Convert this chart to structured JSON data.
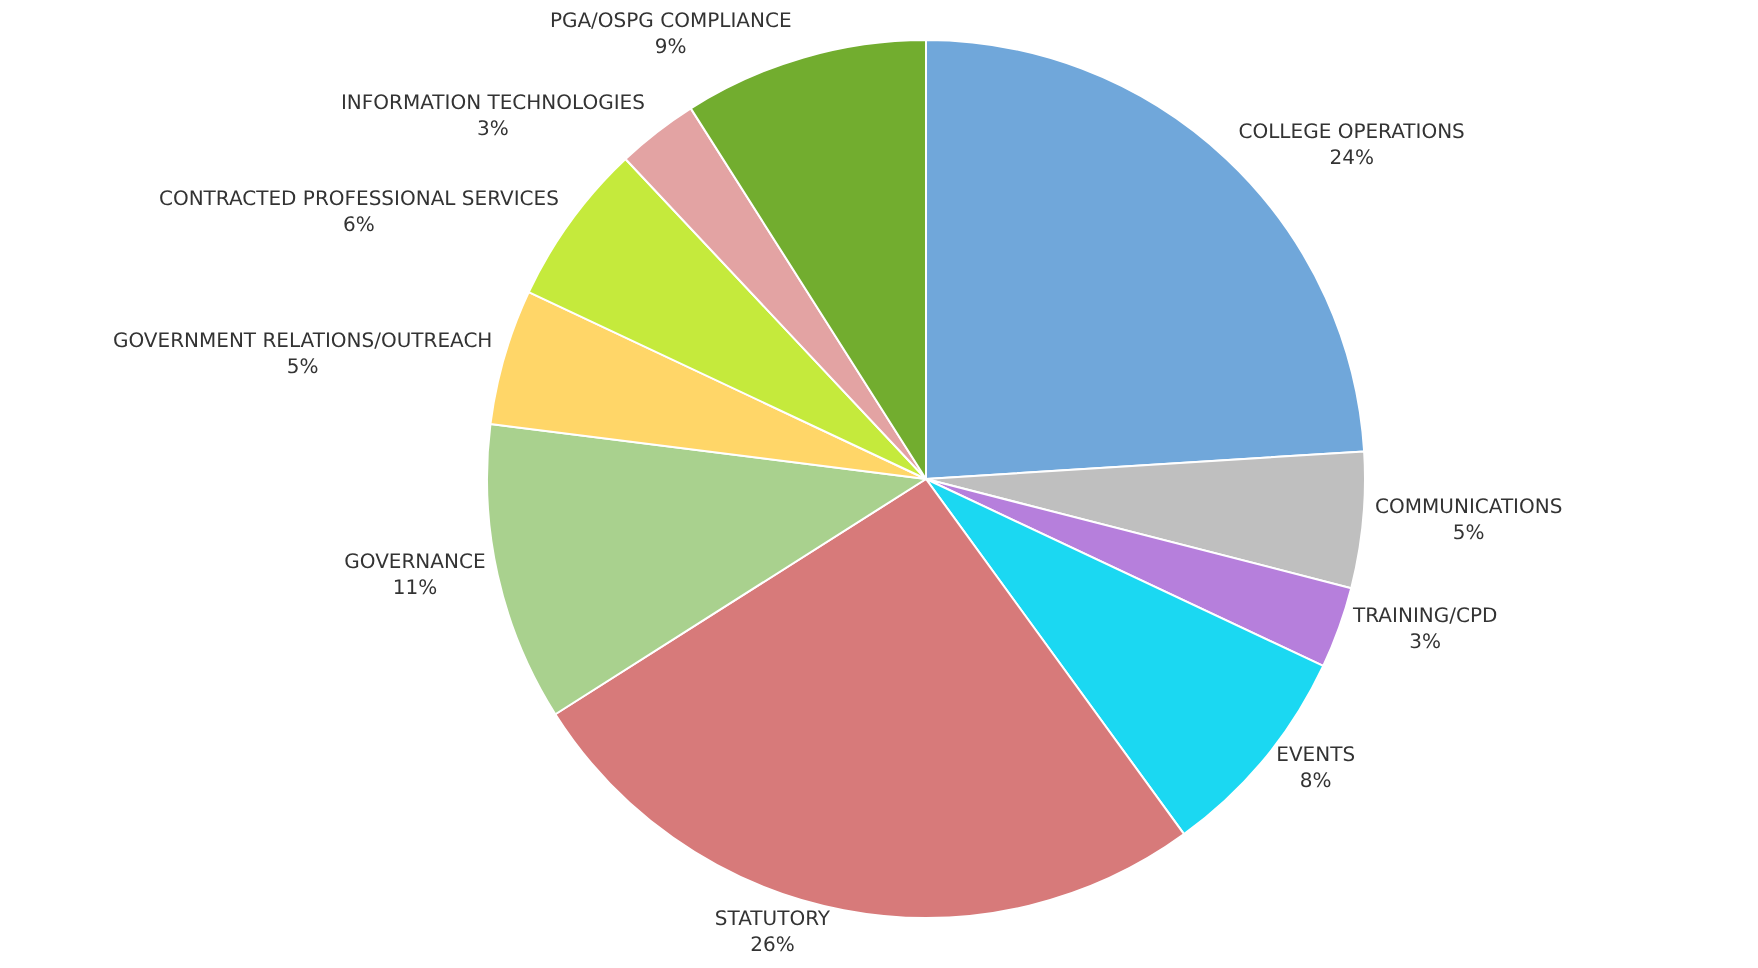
{
  "chart_data": {
    "type": "pie",
    "categories": [
      "COLLEGE OPERATIONS",
      "COMMUNICATIONS",
      "TRAINING/CPD",
      "EVENTS",
      "STATUTORY",
      "GOVERNANCE",
      "GOVERNMENT RELATIONS/OUTREACH",
      "CONTRACTED PROFESSIONAL SERVICES",
      "INFORMATION TECHNOLOGIES",
      "PGA/OSPG COMPLIANCE"
    ],
    "values": [
      24,
      5,
      3,
      8,
      26,
      11,
      5,
      6,
      3,
      9
    ],
    "value_labels": [
      "24%",
      "5%",
      "3%",
      "8%",
      "26%",
      "11%",
      "5%",
      "6%",
      "3%",
      "9%"
    ],
    "colors": [
      "#70a7da",
      "#bfbfbf",
      "#b67fdc",
      "#1bd8f2",
      "#d77a7a",
      "#a9d18e",
      "#ffd668",
      "#c5ea3c",
      "#e3a3a3",
      "#72ad2f"
    ],
    "legend": false
  }
}
